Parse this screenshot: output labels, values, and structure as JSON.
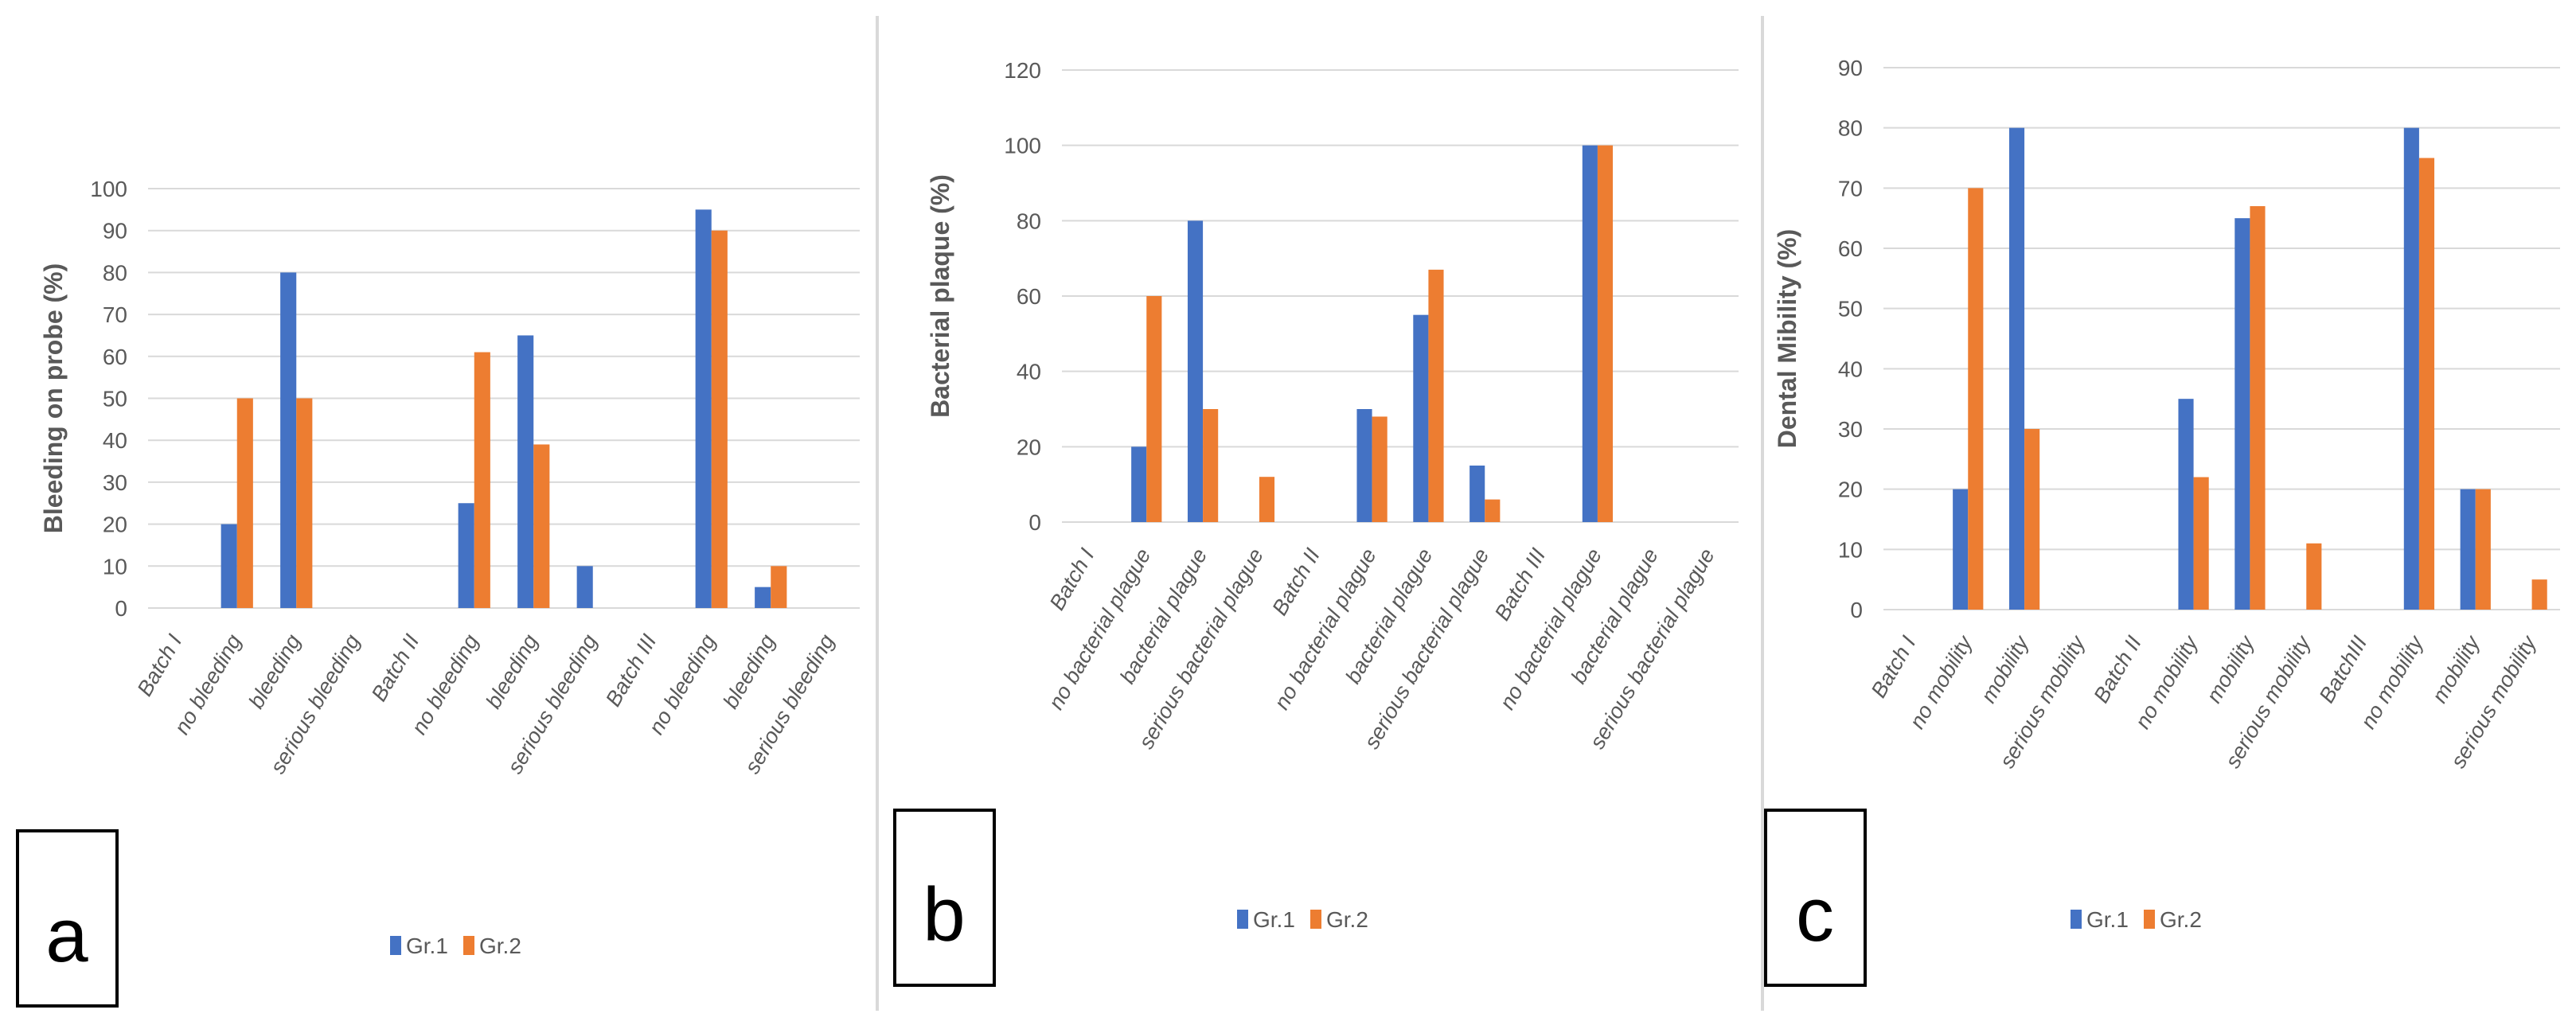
{
  "colors": {
    "gr1": "#4472C4",
    "gr2": "#ED7D31",
    "grid": "#D9D9D9",
    "text": "#595959",
    "box": "#000000"
  },
  "legend": {
    "gr1": "Gr.1",
    "gr2": "Gr.2"
  },
  "chart_data": [
    {
      "type": "bar",
      "panel": "a",
      "ylabel": "Bleeding on probe (%)",
      "ylim": [
        0,
        100
      ],
      "yticks": [
        0,
        10,
        20,
        30,
        40,
        50,
        60,
        70,
        80,
        90,
        100
      ],
      "grid": true,
      "legend_position": "bottom",
      "categories": [
        "Batch I",
        "no bleeding",
        "bleeding",
        "serious bleeding",
        "Batch II",
        "no bleeding",
        "bleeding",
        "serious bleeding",
        "Batch III",
        "no bleeding",
        "bleeding",
        "serious bleeding"
      ],
      "series": [
        {
          "name": "Gr.1",
          "values": [
            null,
            20,
            80,
            0,
            null,
            25,
            65,
            10,
            null,
            95,
            5,
            0
          ]
        },
        {
          "name": "Gr.2",
          "values": [
            null,
            50,
            50,
            0,
            null,
            61,
            39,
            0,
            null,
            90,
            10,
            0
          ]
        }
      ]
    },
    {
      "type": "bar",
      "panel": "b",
      "ylabel": "Bacterial plaque (%)",
      "ylim": [
        0,
        120
      ],
      "yticks": [
        0,
        20,
        40,
        60,
        80,
        100,
        120
      ],
      "grid": true,
      "legend_position": "bottom",
      "categories": [
        "Batch I",
        "no bacterial plague",
        "bacterial plague",
        "serious bacterial plague",
        "Batch II",
        "no bacterial plague",
        "bacterial plague",
        "serious bacterial plague",
        "Batch III",
        "no bacterial plague",
        "bacterial plague",
        "serious bacterial plague"
      ],
      "series": [
        {
          "name": "Gr.1",
          "values": [
            null,
            20,
            80,
            0,
            null,
            30,
            55,
            15,
            null,
            100,
            0,
            0
          ]
        },
        {
          "name": "Gr.2",
          "values": [
            null,
            60,
            30,
            12,
            null,
            28,
            67,
            6,
            null,
            100,
            0,
            0
          ]
        }
      ]
    },
    {
      "type": "bar",
      "panel": "c",
      "ylabel": "Dental Mibility (%)",
      "ylim": [
        0,
        90
      ],
      "yticks": [
        0,
        10,
        20,
        30,
        40,
        50,
        60,
        70,
        80,
        90
      ],
      "grid": true,
      "legend_position": "bottom",
      "categories": [
        "Batch I",
        "no mobility",
        "mobility",
        "serious mobility",
        "Batch II",
        "no mobility",
        "mobility",
        "serious mobility",
        "BatchIII",
        "no mobility",
        "mobility",
        "serious mobility"
      ],
      "series": [
        {
          "name": "Gr.1",
          "values": [
            null,
            20,
            80,
            0,
            null,
            35,
            65,
            0,
            null,
            80,
            20,
            0
          ]
        },
        {
          "name": "Gr.2",
          "values": [
            null,
            70,
            30,
            0,
            null,
            22,
            67,
            11,
            null,
            75,
            20,
            5
          ]
        }
      ]
    }
  ]
}
